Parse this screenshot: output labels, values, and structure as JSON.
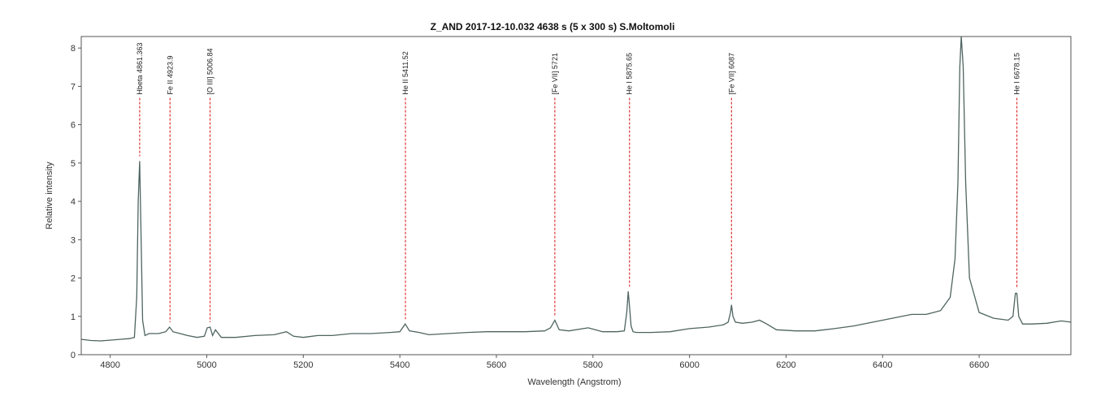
{
  "chart_data": {
    "type": "line",
    "title": "Z_AND  2017-12-10.032  4638 s (5 x 300 s)  S.Moltomoli",
    "xlabel": "Wavelength (Angstrom)",
    "ylabel": "Relative intensity",
    "xlim": [
      4740,
      6790
    ],
    "ylim": [
      0,
      8.3
    ],
    "xticks": [
      4800,
      5000,
      5200,
      5400,
      5600,
      5800,
      6000,
      6200,
      6400,
      6600
    ],
    "yticks": [
      0,
      1,
      2,
      3,
      4,
      5,
      6,
      7,
      8
    ],
    "grid": false,
    "line_color": "#4e6460",
    "marker_color": "#e03030",
    "series": [
      {
        "x": [
          4740,
          4760,
          4780,
          4800,
          4820,
          4840,
          4850,
          4855,
          4858,
          4861,
          4864,
          4867,
          4872,
          4880,
          4900,
          4915,
          4923,
          4930,
          4945,
          4960,
          4980,
          4995,
          5001,
          5007,
          5012,
          5018,
          5030,
          5060,
          5100,
          5140,
          5165,
          5180,
          5200,
          5230,
          5260,
          5300,
          5340,
          5380,
          5400,
          5411,
          5420,
          5440,
          5460,
          5500,
          5540,
          5580,
          5620,
          5660,
          5700,
          5712,
          5721,
          5730,
          5750,
          5790,
          5820,
          5850,
          5865,
          5870,
          5873,
          5876,
          5879,
          5883,
          5890,
          5920,
          5960,
          6000,
          6040,
          6070,
          6080,
          6085,
          6087,
          6090,
          6095,
          6110,
          6130,
          6145,
          6160,
          6180,
          6220,
          6260,
          6300,
          6340,
          6380,
          6420,
          6460,
          6490,
          6520,
          6540,
          6550,
          6556,
          6560,
          6563,
          6567,
          6572,
          6580,
          6600,
          6630,
          6660,
          6670,
          6675,
          6678,
          6682,
          6690,
          6710,
          6740,
          6770,
          6790
        ],
        "y": [
          0.4,
          0.37,
          0.36,
          0.38,
          0.4,
          0.42,
          0.45,
          1.5,
          4.0,
          5.05,
          3.0,
          0.9,
          0.5,
          0.55,
          0.55,
          0.6,
          0.72,
          0.6,
          0.55,
          0.5,
          0.45,
          0.48,
          0.7,
          0.72,
          0.5,
          0.65,
          0.45,
          0.45,
          0.5,
          0.52,
          0.6,
          0.48,
          0.45,
          0.5,
          0.5,
          0.55,
          0.55,
          0.58,
          0.6,
          0.8,
          0.62,
          0.58,
          0.52,
          0.55,
          0.58,
          0.6,
          0.6,
          0.6,
          0.62,
          0.7,
          0.9,
          0.65,
          0.62,
          0.7,
          0.6,
          0.6,
          0.62,
          1.1,
          1.65,
          1.2,
          0.75,
          0.6,
          0.58,
          0.58,
          0.6,
          0.68,
          0.72,
          0.78,
          0.85,
          1.1,
          1.3,
          1.0,
          0.85,
          0.82,
          0.85,
          0.9,
          0.8,
          0.65,
          0.62,
          0.62,
          0.68,
          0.75,
          0.85,
          0.95,
          1.05,
          1.05,
          1.15,
          1.5,
          2.5,
          4.5,
          7.5,
          8.3,
          7.5,
          4.5,
          2.0,
          1.1,
          0.95,
          0.9,
          1.0,
          1.6,
          1.6,
          1.0,
          0.8,
          0.8,
          0.82,
          0.88,
          0.85
        ]
      }
    ],
    "annotations": [
      {
        "label": "Hbeta 4861.363",
        "x": 4861
      },
      {
        "label": "Fe II 4923.9",
        "x": 4923.9
      },
      {
        "label": "[O III] 5006.84",
        "x": 5006.84
      },
      {
        "label": "He II 5411.52",
        "x": 5411.52
      },
      {
        "label": "[Fe VII] 5721",
        "x": 5721
      },
      {
        "label": "He I 5875.65",
        "x": 5875.65
      },
      {
        "label": "[Fe VII] 6087",
        "x": 6087
      },
      {
        "label": "He I 6678.15",
        "x": 6678.15
      }
    ]
  }
}
